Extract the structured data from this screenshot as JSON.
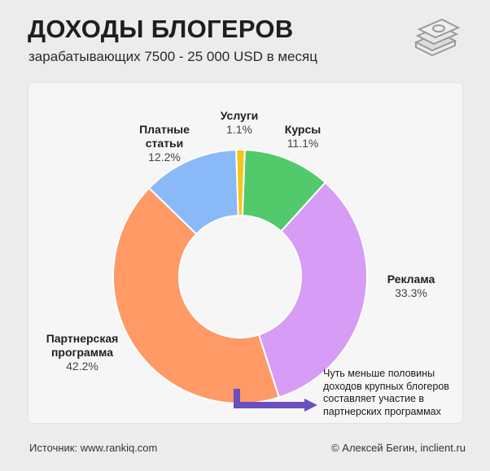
{
  "header": {
    "title": "ДОХОДЫ БЛОГЕРОВ",
    "subtitle": "зарабатывающих 7500 - 25 000 USD в месяц"
  },
  "icon": "money-stack-icon",
  "chart_data": {
    "type": "pie",
    "donut": true,
    "slices": [
      {
        "name": "Услуги",
        "value": 1.1,
        "label": "1.1%",
        "color": "#f5c518"
      },
      {
        "name": "Курсы",
        "value": 11.1,
        "label": "11.1%",
        "color": "#52c96a"
      },
      {
        "name": "Реклама",
        "value": 33.3,
        "label": "33.3%",
        "color": "#d79cf5"
      },
      {
        "name": "Партнерская\nпрограмма",
        "value": 42.2,
        "label": "42.2%",
        "color": "#ff9966"
      },
      {
        "name": "Платные\nстатьи",
        "value": 12.2,
        "label": "12.2%",
        "color": "#8ab9f7"
      }
    ]
  },
  "annotation": {
    "text": "Чуть меньше половины доходов крупных блогеров составляет участие в партнерских программах",
    "arrow_color": "#6a4fbf"
  },
  "footer": {
    "source": "Источник: www.rankiq.com",
    "credit": "© Алексей Бегин, inclient.ru"
  }
}
